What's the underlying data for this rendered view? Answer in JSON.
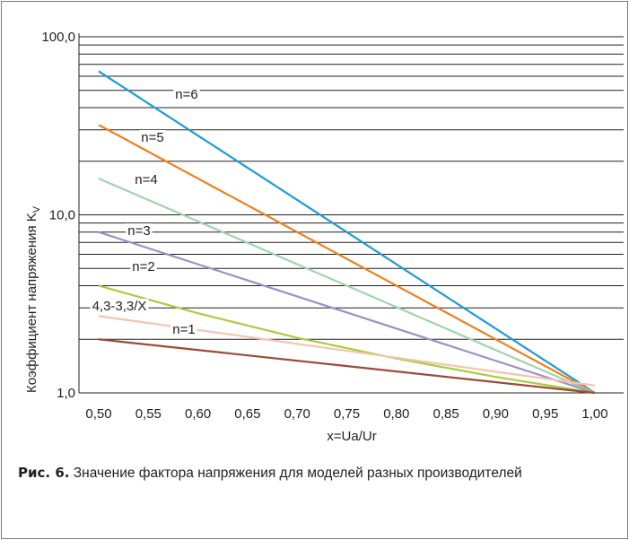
{
  "chart_data": {
    "type": "line",
    "xlabel": "x=Ua/Ur",
    "ylabel": "Коэффициент напряжения K",
    "ylabel_sub": "V",
    "yscale": "log",
    "ylim": [
      1.0,
      100.0
    ],
    "xlim": [
      0.475,
      1.025
    ],
    "yticks": [
      1.0,
      10.0,
      100.0
    ],
    "ytick_labels": [
      "1,0",
      "10,0",
      "100,0"
    ],
    "grid": "horizontal",
    "x": [
      0.5,
      0.55,
      0.6,
      0.65,
      0.7,
      0.75,
      0.8,
      0.85,
      0.9,
      0.95,
      1.0
    ],
    "xtick_labels": [
      "0,50",
      "0,55",
      "0,60",
      "0,65",
      "0,70",
      "0,75",
      "0,80",
      "0,85",
      "0,90",
      "0,95",
      "1,00"
    ],
    "series": [
      {
        "name": "n=6",
        "color": "#1f9ad6",
        "x": [
          0.5,
          1.0
        ],
        "values": [
          64.0,
          1.0
        ]
      },
      {
        "name": "n=5",
        "color": "#f07f1a",
        "x": [
          0.5,
          1.0
        ],
        "values": [
          32.0,
          1.0
        ]
      },
      {
        "name": "n=4",
        "color": "#9fd4b0",
        "x": [
          0.5,
          1.0
        ],
        "values": [
          16.0,
          1.0
        ]
      },
      {
        "name": "n=3",
        "color": "#9a90cc",
        "x": [
          0.5,
          1.0
        ],
        "values": [
          8.0,
          1.0
        ]
      },
      {
        "name": "n=2",
        "color": "#a9cc3c",
        "x": [
          0.5,
          0.6,
          0.7,
          0.8,
          0.9,
          1.0
        ],
        "values": [
          4.0,
          2.8,
          2.04,
          1.56,
          1.23,
          1.0
        ]
      },
      {
        "name": "4,3-3,3/X",
        "color": "#f5c3b0",
        "x": [
          0.5,
          1.0
        ],
        "values": [
          2.7,
          1.1
        ]
      },
      {
        "name": "n=1",
        "color": "#9c4a3a",
        "x": [
          0.5,
          1.0
        ],
        "values": [
          2.0,
          1.0
        ]
      }
    ]
  },
  "caption": {
    "label": "Рис. 6.",
    "text": "Значение фактора напряжения для моделей разных производителей"
  }
}
